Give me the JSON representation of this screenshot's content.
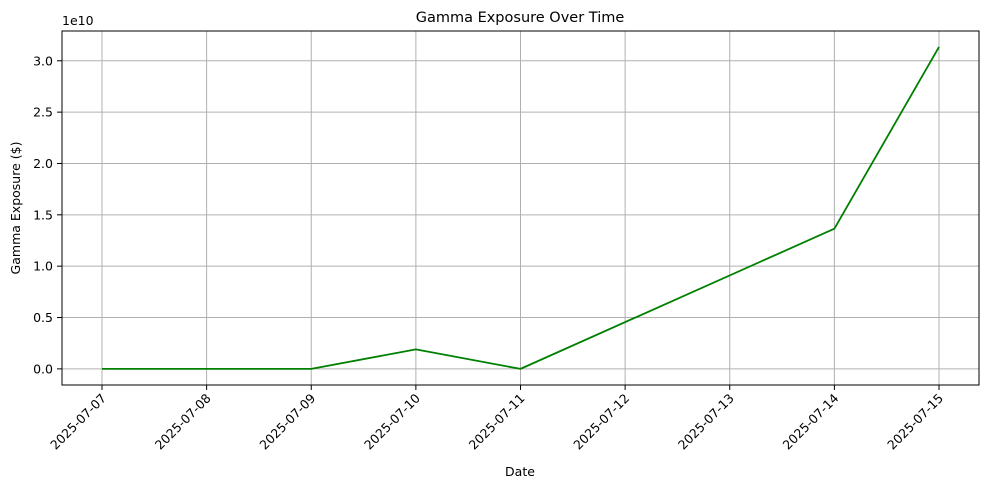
{
  "chart_data": {
    "type": "line",
    "title": "Gamma Exposure Over Time",
    "xlabel": "Date",
    "ylabel": "Gamma Exposure ($)",
    "y_offset_label": "1e10",
    "x": [
      "2025-07-07",
      "2025-07-08",
      "2025-07-09",
      "2025-07-10",
      "2025-07-11",
      "2025-07-12",
      "2025-07-13",
      "2025-07-14",
      "2025-07-15"
    ],
    "series": [
      {
        "color": "#008000",
        "points": [
          {
            "x": "2025-07-07",
            "y": 0.0
          },
          {
            "x": "2025-07-09",
            "y": 0.0
          },
          {
            "x": "2025-07-10",
            "y": 1.9
          },
          {
            "x": "2025-07-11",
            "y": 0.0
          },
          {
            "x": "2025-07-14",
            "y": 13.65
          },
          {
            "x": "2025-07-15",
            "y": 31.35
          }
        ]
      }
    ],
    "yticks": [
      "0.0",
      "0.5",
      "1.0",
      "1.5",
      "2.0",
      "2.5",
      "3.0"
    ],
    "ytick_values": [
      0.0,
      5.0,
      10.0,
      15.0,
      20.0,
      25.0,
      30.0
    ],
    "ylim": [
      -1.57,
      32.9
    ],
    "grid": true,
    "legend": "none"
  }
}
